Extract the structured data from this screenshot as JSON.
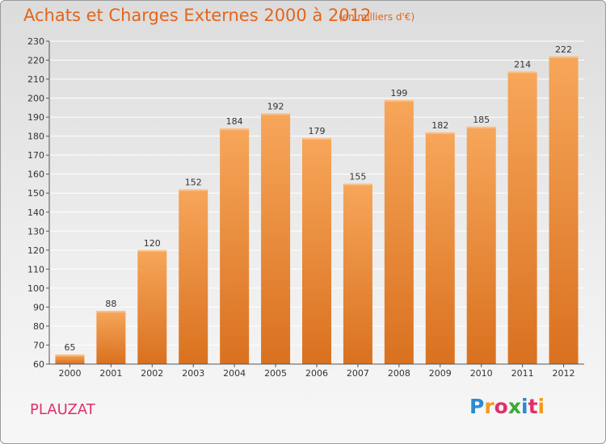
{
  "header": {
    "title": "Achats et Charges Externes 2000 à 2012",
    "subtitle": "(en milliers d'€)"
  },
  "footer": {
    "commune": "PLAUZAT",
    "logo_letters": [
      "P",
      "r",
      "o",
      "x",
      "i",
      "t",
      "i"
    ],
    "logo_colors": [
      "#2a8bd0",
      "#f29a1f",
      "#e0306a",
      "#3aaa35",
      "#2a8bd0",
      "#e0306a",
      "#f29a1f"
    ]
  },
  "colors": {
    "bar_light": "#f7a65a",
    "bar_dark": "#d9711f",
    "grid": "#ffffff",
    "axis": "#555555",
    "title": "#e3651b"
  },
  "chart_data": {
    "type": "bar",
    "title": "Achats et Charges Externes 2000 à 2012",
    "subtitle": "(en milliers d'€)",
    "xlabel": "",
    "ylabel": "",
    "categories": [
      "2000",
      "2001",
      "2002",
      "2003",
      "2004",
      "2005",
      "2006",
      "2007",
      "2008",
      "2009",
      "2010",
      "2011",
      "2012"
    ],
    "values": [
      65,
      88,
      120,
      152,
      184,
      192,
      179,
      155,
      199,
      182,
      185,
      214,
      222
    ],
    "ylim": [
      60,
      230
    ],
    "yticks": [
      60,
      70,
      80,
      90,
      100,
      110,
      120,
      130,
      140,
      150,
      160,
      170,
      180,
      190,
      200,
      210,
      220,
      230
    ],
    "grid": true,
    "data_labels": true
  }
}
